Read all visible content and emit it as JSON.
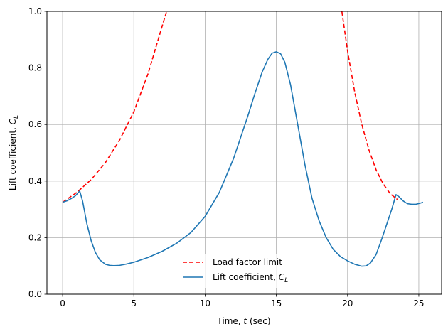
{
  "chart_data": {
    "type": "line",
    "xlabel": "Time, t (sec)",
    "ylabel": "Lift coefficient, C_L",
    "xlim": [
      -1.1,
      26.6
    ],
    "ylim": [
      0,
      1
    ],
    "xticks": [
      0,
      5,
      10,
      15,
      20,
      25
    ],
    "yticks": [
      0.0,
      0.2,
      0.4,
      0.6,
      0.8,
      1.0
    ],
    "x_tick_labels": [
      "0",
      "5",
      "10",
      "15",
      "20",
      "25"
    ],
    "y_tick_labels": [
      "0.0",
      "0.2",
      "0.4",
      "0.6",
      "0.8",
      "1.0"
    ],
    "grid": true,
    "legend_placement": "lower-center",
    "series": [
      {
        "name": "Load factor limit",
        "style": "dashed",
        "color": "#ff0000",
        "segments": [
          {
            "x": [
              0,
              1,
              2,
              3,
              4,
              5,
              6,
              7,
              7.3
            ],
            "y": [
              0.325,
              0.36,
              0.405,
              0.465,
              0.545,
              0.645,
              0.78,
              0.95,
              1.0
            ]
          },
          {
            "x": [
              19.6,
              20,
              20.5,
              21,
              21.5,
              22,
              22.5,
              23,
              23.5
            ],
            "y": [
              1.0,
              0.86,
              0.715,
              0.6,
              0.51,
              0.44,
              0.39,
              0.355,
              0.335
            ]
          }
        ]
      },
      {
        "name": "Lift coefficient, C_L",
        "style": "solid",
        "color": "#1f77b4",
        "x": [
          0,
          0.3,
          0.6,
          0.9,
          1.2,
          1.4,
          1.7,
          2.0,
          2.3,
          2.6,
          3.0,
          3.3,
          3.6,
          4.0,
          4.5,
          5.0,
          6.0,
          7.0,
          8.0,
          9.0,
          10.0,
          11.0,
          12.0,
          13.0,
          13.5,
          14.0,
          14.4,
          14.7,
          15.0,
          15.3,
          15.6,
          16.0,
          16.5,
          17.0,
          17.5,
          18.0,
          18.5,
          19.0,
          19.5,
          20.0,
          20.5,
          21.0,
          21.3,
          21.6,
          22.0,
          22.4,
          22.8,
          23.1,
          23.4,
          23.6,
          23.9,
          24.2,
          24.5,
          24.8,
          25.1,
          25.3
        ],
        "y": [
          0.325,
          0.33,
          0.338,
          0.348,
          0.365,
          0.33,
          0.25,
          0.19,
          0.148,
          0.122,
          0.106,
          0.102,
          0.101,
          0.102,
          0.107,
          0.113,
          0.13,
          0.152,
          0.18,
          0.218,
          0.275,
          0.36,
          0.48,
          0.63,
          0.71,
          0.785,
          0.83,
          0.852,
          0.857,
          0.85,
          0.82,
          0.74,
          0.6,
          0.46,
          0.34,
          0.26,
          0.2,
          0.158,
          0.133,
          0.118,
          0.106,
          0.099,
          0.1,
          0.11,
          0.14,
          0.195,
          0.255,
          0.3,
          0.352,
          0.345,
          0.33,
          0.32,
          0.318,
          0.318,
          0.322,
          0.325
        ]
      }
    ]
  }
}
